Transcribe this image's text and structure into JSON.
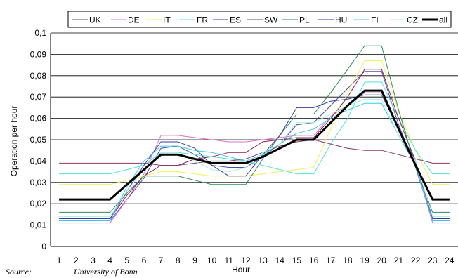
{
  "chart_data": {
    "type": "line",
    "xlabel": "Hour",
    "ylabel": "Operation per hour",
    "x": [
      1,
      2,
      3,
      4,
      5,
      6,
      7,
      8,
      9,
      10,
      11,
      12,
      13,
      14,
      15,
      16,
      17,
      18,
      19,
      20,
      21,
      22,
      23,
      24
    ],
    "ylim": [
      0,
      0.1
    ],
    "yticks": [
      "0",
      "0,01",
      "0,02",
      "0,03",
      "0,04",
      "0,05",
      "0,06",
      "0,07",
      "0,08",
      "0,09",
      "0,1"
    ],
    "grid": true,
    "legend_position": "top",
    "series": [
      {
        "name": "UK",
        "color": "#4b4ba8",
        "width": 1,
        "values": [
          0.012,
          0.012,
          0.012,
          0.012,
          0.022,
          0.032,
          0.046,
          0.047,
          0.043,
          0.038,
          0.037,
          0.037,
          0.042,
          0.048,
          0.057,
          0.058,
          0.066,
          0.074,
          0.082,
          0.082,
          0.057,
          0.037,
          0.012,
          0.012
        ]
      },
      {
        "name": "DE",
        "color": "#e070d0",
        "width": 1,
        "values": [
          0.011,
          0.011,
          0.011,
          0.011,
          0.022,
          0.034,
          0.052,
          0.052,
          0.051,
          0.05,
          0.049,
          0.049,
          0.05,
          0.051,
          0.052,
          0.052,
          0.061,
          0.066,
          0.072,
          0.072,
          0.056,
          0.038,
          0.011,
          0.011
        ]
      },
      {
        "name": "IT",
        "color": "#f2f25a",
        "width": 1,
        "values": [
          0.029,
          0.029,
          0.029,
          0.029,
          0.031,
          0.033,
          0.035,
          0.035,
          0.034,
          0.033,
          0.033,
          0.033,
          0.034,
          0.035,
          0.036,
          0.037,
          0.055,
          0.072,
          0.087,
          0.087,
          0.063,
          0.045,
          0.029,
          0.029
        ]
      },
      {
        "name": "FR",
        "color": "#55e0e0",
        "width": 1,
        "values": [
          0.034,
          0.034,
          0.034,
          0.034,
          0.036,
          0.038,
          0.044,
          0.044,
          0.043,
          0.042,
          0.041,
          0.04,
          0.038,
          0.036,
          0.034,
          0.034,
          0.048,
          0.06,
          0.077,
          0.077,
          0.06,
          0.045,
          0.034,
          0.034
        ]
      },
      {
        "name": "ES",
        "color": "#882255",
        "width": 1,
        "values": [
          0.013,
          0.013,
          0.013,
          0.013,
          0.024,
          0.033,
          0.038,
          0.038,
          0.041,
          0.042,
          0.044,
          0.044,
          0.049,
          0.05,
          0.051,
          0.051,
          0.06,
          0.07,
          0.083,
          0.083,
          0.06,
          0.04,
          0.013,
          0.013
        ]
      },
      {
        "name": "SW",
        "color": "#8b3a62",
        "width": 1,
        "values": [
          0.039,
          0.039,
          0.039,
          0.039,
          0.039,
          0.039,
          0.038,
          0.038,
          0.039,
          0.04,
          0.04,
          0.041,
          0.044,
          0.047,
          0.049,
          0.05,
          0.048,
          0.046,
          0.045,
          0.045,
          0.043,
          0.041,
          0.039,
          0.039
        ]
      },
      {
        "name": "PL",
        "color": "#2e8b57",
        "width": 1,
        "values": [
          0.016,
          0.016,
          0.016,
          0.016,
          0.025,
          0.033,
          0.033,
          0.033,
          0.031,
          0.029,
          0.029,
          0.029,
          0.041,
          0.052,
          0.062,
          0.062,
          0.072,
          0.083,
          0.094,
          0.094,
          0.064,
          0.037,
          0.016,
          0.016
        ]
      },
      {
        "name": "HU",
        "color": "#3a3aa8",
        "width": 1,
        "values": [
          0.013,
          0.013,
          0.013,
          0.013,
          0.026,
          0.038,
          0.049,
          0.049,
          0.046,
          0.038,
          0.033,
          0.033,
          0.043,
          0.052,
          0.065,
          0.065,
          0.068,
          0.069,
          0.071,
          0.071,
          0.055,
          0.04,
          0.013,
          0.013
        ]
      },
      {
        "name": "FI",
        "color": "#3cc8e6",
        "width": 1,
        "values": [
          0.012,
          0.012,
          0.012,
          0.012,
          0.028,
          0.04,
          0.047,
          0.047,
          0.045,
          0.044,
          0.042,
          0.04,
          0.043,
          0.048,
          0.053,
          0.055,
          0.06,
          0.064,
          0.067,
          0.067,
          0.052,
          0.038,
          0.012,
          0.012
        ]
      },
      {
        "name": "CZ",
        "color": "#a8f0e6",
        "width": 1,
        "values": [
          0.014,
          0.014,
          0.014,
          0.014,
          0.026,
          0.036,
          0.044,
          0.044,
          0.04,
          0.036,
          0.035,
          0.037,
          0.044,
          0.048,
          0.058,
          0.058,
          0.062,
          0.066,
          0.069,
          0.069,
          0.052,
          0.04,
          0.014,
          0.014
        ]
      },
      {
        "name": "all",
        "color": "#000000",
        "width": 3,
        "values": [
          0.022,
          0.022,
          0.022,
          0.022,
          0.029,
          0.036,
          0.043,
          0.043,
          0.041,
          0.039,
          0.039,
          0.039,
          0.042,
          0.046,
          0.05,
          0.05,
          0.058,
          0.066,
          0.073,
          0.073,
          0.055,
          0.038,
          0.022,
          0.022
        ]
      }
    ]
  },
  "source": {
    "label": "Source:",
    "text": "University of Bonn"
  }
}
